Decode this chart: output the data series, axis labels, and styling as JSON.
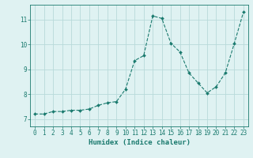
{
  "x": [
    0,
    1,
    2,
    3,
    4,
    5,
    6,
    7,
    8,
    9,
    10,
    11,
    12,
    13,
    14,
    15,
    16,
    17,
    18,
    19,
    20,
    21,
    22,
    23
  ],
  "y": [
    7.2,
    7.2,
    7.3,
    7.3,
    7.35,
    7.35,
    7.4,
    7.55,
    7.65,
    7.7,
    8.2,
    9.35,
    9.55,
    11.15,
    11.05,
    10.05,
    9.7,
    8.85,
    8.45,
    8.05,
    8.3,
    8.85,
    10.05,
    11.3
  ],
  "line_color": "#1a7a6e",
  "marker": "D",
  "marker_size": 2.0,
  "bg_color": "#dff2f2",
  "grid_color": "#b8dada",
  "xlabel": "Humidex (Indice chaleur)",
  "ylim": [
    6.7,
    11.6
  ],
  "xlim": [
    -0.5,
    23.5
  ],
  "yticks": [
    7,
    8,
    9,
    10,
    11
  ],
  "xticks": [
    0,
    1,
    2,
    3,
    4,
    5,
    6,
    7,
    8,
    9,
    10,
    11,
    12,
    13,
    14,
    15,
    16,
    17,
    18,
    19,
    20,
    21,
    22,
    23
  ],
  "tick_color": "#1a7a6e",
  "label_color": "#1a7a6e",
  "font_size": 5.5,
  "xlabel_fontsize": 6.5
}
